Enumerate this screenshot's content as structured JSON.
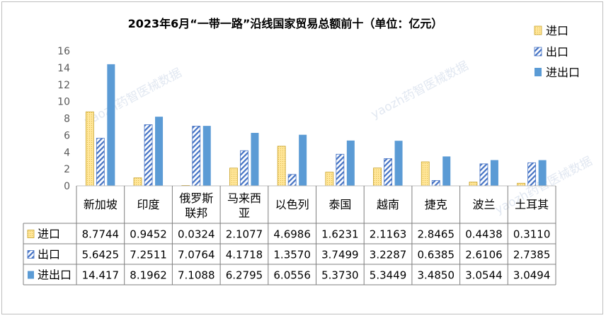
{
  "chart_data": {
    "type": "bar",
    "title": "2023年6月“一带一路”沿线国家贸易总额前十（单位：亿元）",
    "categories": [
      "新加坡",
      "印度",
      "俄罗斯联邦",
      "马来西亚",
      "以色列",
      "泰国",
      "越南",
      "捷克",
      "波兰",
      "土耳其"
    ],
    "category_lines": [
      [
        "新加坡"
      ],
      [
        "印度"
      ],
      [
        "俄罗斯",
        "联邦"
      ],
      [
        "马来西",
        "亚"
      ],
      [
        "以色列"
      ],
      [
        "泰国"
      ],
      [
        "越南"
      ],
      [
        "捷克"
      ],
      [
        "波兰"
      ],
      [
        "土耳其"
      ]
    ],
    "ylim": [
      0,
      16
    ],
    "yticks": [
      "0",
      "2",
      "4",
      "6",
      "8",
      "10",
      "12",
      "14",
      "16"
    ],
    "grid": false,
    "legend_position": "right",
    "series": [
      {
        "name": "进口",
        "color": "#ffe699",
        "pattern": "dotted",
        "values": [
          8.7744,
          0.9452,
          0.0324,
          2.1077,
          4.6986,
          1.6231,
          2.1163,
          2.8465,
          0.4438,
          0.311
        ],
        "labels": [
          "8.7744",
          "0.9452",
          "0.0324",
          "2.1077",
          "4.6986",
          "1.6231",
          "2.1163",
          "2.8465",
          "0.4438",
          "0.3110"
        ]
      },
      {
        "name": "出口",
        "color": "#4472c4",
        "pattern": "diagonal-hatch",
        "values": [
          5.6425,
          7.2511,
          7.0764,
          4.1718,
          1.357,
          3.7499,
          3.2287,
          0.6385,
          2.6106,
          2.7385
        ],
        "labels": [
          "5.6425",
          "7.2511",
          "7.0764",
          "4.1718",
          "1.3570",
          "3.7499",
          "3.2287",
          "0.6385",
          "2.6106",
          "2.7385"
        ]
      },
      {
        "name": "进出口",
        "color": "#5b9bd5",
        "pattern": "solid",
        "values": [
          14.417,
          8.1962,
          7.1088,
          6.2795,
          6.0556,
          5.373,
          5.3449,
          3.485,
          3.0544,
          3.0494
        ],
        "labels": [
          "14.417",
          "8.1962",
          "7.1088",
          "6.2795",
          "6.0556",
          "5.3730",
          "5.3449",
          "3.4850",
          "3.0544",
          "3.0494"
        ]
      }
    ],
    "watermarks": [
      "yaozh药智医械数据",
      "yaozh药智医械数据",
      "yaozh药智医械数据"
    ]
  }
}
